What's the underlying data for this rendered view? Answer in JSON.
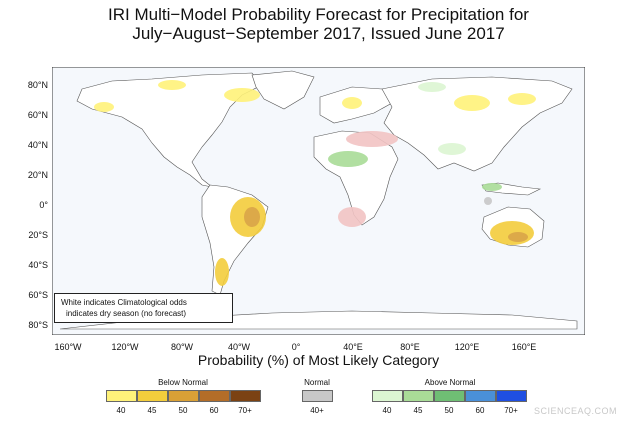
{
  "title": {
    "line1": "IRI Multi−Model Probability Forecast for Precipitation for",
    "line2": "July−August−September 2017, Issued June 2017"
  },
  "map": {
    "lat_labels": [
      "80°N",
      "60°N",
      "40°N",
      "20°N",
      "0°",
      "20°S",
      "40°S",
      "60°S",
      "80°S"
    ],
    "lon_labels": [
      "160°W",
      "120°W",
      "80°W",
      "40°W",
      "0°",
      "40°E",
      "80°E",
      "120°E",
      "160°E"
    ],
    "ocean_color": "#f5f8fc",
    "land_color": "#ffffff"
  },
  "axis_title": "Probability (%) of Most Likely Category",
  "legend": {
    "below_normal": {
      "title": "Below Normal",
      "ticks": [
        "40",
        "45",
        "50",
        "60",
        "70+"
      ],
      "colors": [
        "#fff27a",
        "#f3cd3c",
        "#d9a036",
        "#b36d28",
        "#7b4213"
      ]
    },
    "normal": {
      "title": "Normal",
      "ticks": [
        "40+"
      ],
      "colors": [
        "#c8c8c8"
      ]
    },
    "above_normal": {
      "title": "Above Normal",
      "ticks": [
        "40",
        "45",
        "50",
        "60",
        "70+"
      ],
      "colors": [
        "#dcf6d2",
        "#a9dc97",
        "#6fbe74",
        "#4a90d8",
        "#1f4fe2"
      ]
    }
  },
  "note": {
    "line1": "White indicates Climatological odds",
    "line2": "indicates dry season (no forecast)",
    "dry_season_color": "#f2c4c4"
  },
  "watermark": "SCIENCEAQ.COM"
}
